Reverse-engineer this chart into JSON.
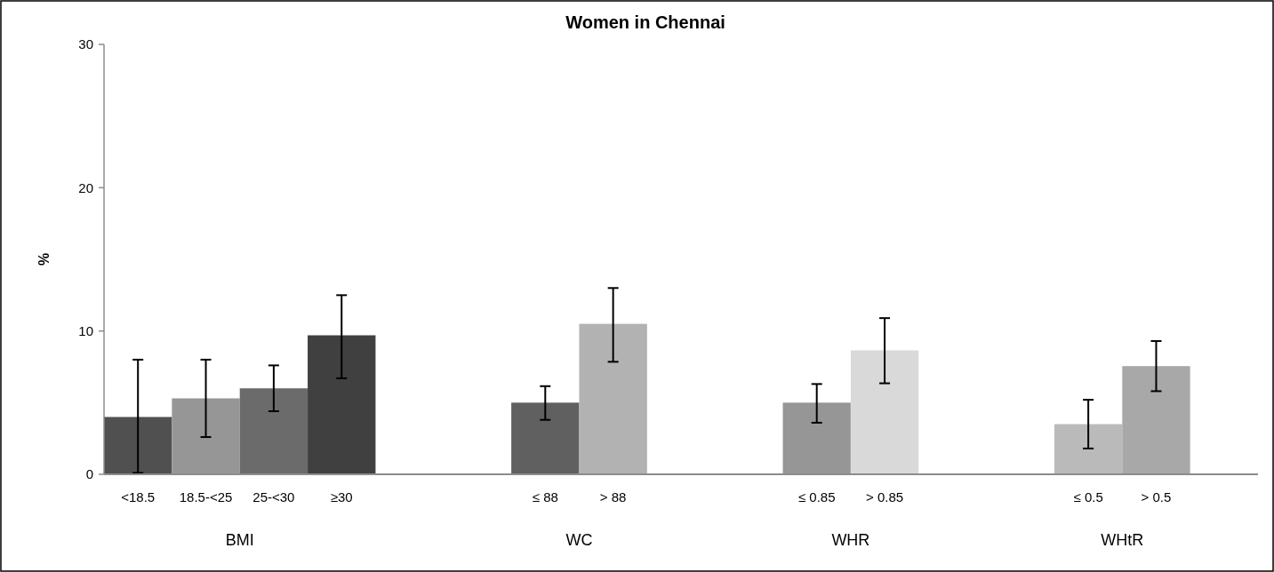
{
  "chart_data": {
    "type": "bar",
    "title": "Women in Chennai",
    "ylabel": "%",
    "categories": [
      "<18.5",
      "18.5-<25",
      "25-<30",
      "≥30",
      null,
      null,
      "≤ 88",
      "> 88",
      null,
      null,
      "≤ 0.85",
      "> 0.85",
      null,
      null,
      "≤ 0.5",
      "> 0.5",
      null
    ],
    "values": [
      4.0,
      5.3,
      6.0,
      9.7,
      null,
      null,
      5.0,
      10.5,
      null,
      null,
      5.0,
      8.65,
      null,
      null,
      3.5,
      7.55,
      null
    ],
    "colors": [
      "#505050",
      "#969696",
      "#6b6b6b",
      "#404040",
      null,
      null,
      "#606060",
      "#b2b2b2",
      null,
      null,
      "#969696",
      "#d9d9d9",
      null,
      null,
      "#bababa",
      "#a8a8a8",
      null
    ],
    "errors": [
      [
        0.1,
        8.0
      ],
      [
        2.6,
        8.0
      ],
      [
        4.4,
        7.6
      ],
      [
        6.7,
        12.5
      ],
      null,
      null,
      [
        3.8,
        6.15
      ],
      [
        7.85,
        13.0
      ],
      null,
      null,
      [
        3.6,
        6.3
      ],
      [
        6.35,
        10.9
      ],
      null,
      null,
      [
        1.8,
        5.2
      ],
      [
        5.8,
        9.3
      ],
      null
    ],
    "annotations": [
      "BMI",
      "WC",
      "WHR",
      "WHtR"
    ],
    "ylim": [
      0,
      30
    ],
    "yticks": [
      0,
      10,
      20,
      30
    ],
    "grid": false
  }
}
